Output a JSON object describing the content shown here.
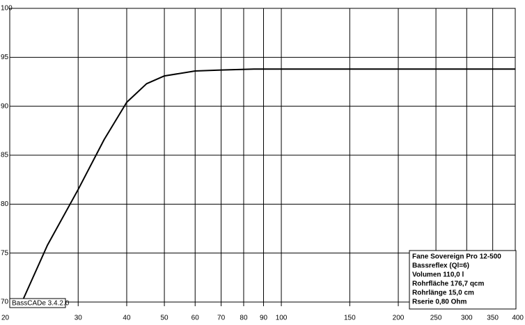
{
  "chart_data": {
    "type": "line",
    "x": [
      21.5,
      25,
      30,
      35,
      40,
      45,
      50,
      60,
      70,
      85,
      100,
      200,
      400
    ],
    "series": [
      {
        "color": "#000000",
        "values": [
          70,
          75.8,
          81.5,
          86.6,
          90.4,
          92.3,
          93.1,
          93.6,
          93.7,
          93.8,
          93.8,
          93.8,
          93.8
        ]
      }
    ],
    "xlim": [
      20,
      400
    ],
    "xscale": "log",
    "xticks": [
      20,
      30,
      40,
      50,
      60,
      70,
      80,
      90,
      100,
      150,
      200,
      250,
      300,
      350,
      400
    ],
    "ylim": [
      70,
      100
    ],
    "yticks": [
      70,
      75,
      80,
      85,
      90,
      95,
      100
    ],
    "grid": true,
    "annotation": "BassCADe 3.4.2.0",
    "info_box": [
      "Fane Sovereign Pro 12-500",
      "Bassreflex (Ql=6)",
      "Volumen 110,0 l",
      "Rohrfläche 176,7 qcm",
      "Rohrlänge 15,0 cm",
      "Rserie 0,80 Ohm"
    ]
  }
}
